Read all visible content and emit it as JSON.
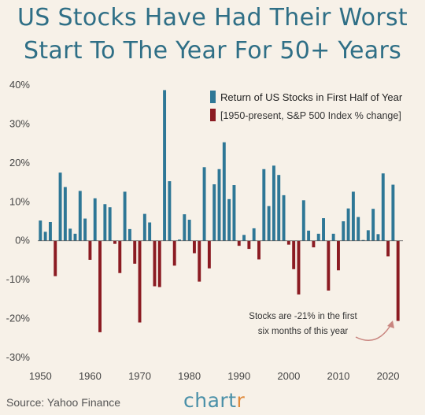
{
  "header": {
    "title_line1": "US Stocks Have Had Their Worst",
    "title_line2": "Start To The Year For 50+ Years"
  },
  "footer": {
    "source": "Source: Yahoo Finance",
    "brand_main": "chart",
    "brand_accent": "r"
  },
  "colors": {
    "positive": "#2e7796",
    "negative": "#8b1b22",
    "title": "#2f6f86",
    "background": "#f7f1e8",
    "brand": "#4a90a8",
    "brand_accent": "#e08a3c",
    "arrow": "#c9857f"
  },
  "chart_data": {
    "type": "bar",
    "title": "US Stocks Have Had Their Worst Start To The Year For 50+ Years",
    "xlabel": "",
    "ylabel": "",
    "x": [
      1950,
      1951,
      1952,
      1953,
      1954,
      1955,
      1956,
      1957,
      1958,
      1959,
      1960,
      1961,
      1962,
      1963,
      1964,
      1965,
      1966,
      1967,
      1968,
      1969,
      1970,
      1971,
      1972,
      1973,
      1974,
      1975,
      1976,
      1977,
      1978,
      1979,
      1980,
      1981,
      1982,
      1983,
      1984,
      1985,
      1986,
      1987,
      1988,
      1989,
      1990,
      1991,
      1992,
      1993,
      1994,
      1995,
      1996,
      1997,
      1998,
      1999,
      2000,
      2001,
      2002,
      2003,
      2004,
      2005,
      2006,
      2007,
      2008,
      2009,
      2010,
      2011,
      2012,
      2013,
      2014,
      2015,
      2016,
      2017,
      2018,
      2019,
      2020,
      2021,
      2022
    ],
    "values": [
      5.2,
      2.3,
      4.8,
      -9.1,
      17.5,
      13.8,
      3.1,
      1.8,
      12.8,
      5.7,
      -4.9,
      10.9,
      -23.5,
      9.4,
      8.6,
      -0.8,
      -8.3,
      12.6,
      3.0,
      -5.9,
      -21.0,
      6.9,
      4.7,
      -11.7,
      -11.9,
      38.7,
      15.3,
      -6.4,
      0.3,
      6.8,
      5.4,
      -3.2,
      -10.5,
      18.9,
      -7.1,
      14.5,
      18.4,
      25.3,
      10.7,
      14.3,
      -1.3,
      1.5,
      -2.1,
      3.2,
      -4.8,
      18.4,
      8.9,
      19.3,
      16.9,
      11.7,
      -1.0,
      -7.3,
      -13.8,
      10.4,
      2.6,
      -1.7,
      1.8,
      5.8,
      -12.8,
      1.8,
      -7.6,
      5.0,
      8.3,
      12.6,
      6.1,
      0.2,
      2.7,
      8.2,
      1.7,
      17.3,
      -4.0,
      14.4,
      -20.6
    ],
    "ylim": [
      -30,
      40
    ],
    "xlim": [
      1949,
      2023
    ],
    "yticks": [
      "40%",
      "30%",
      "20%",
      "10%",
      "0%",
      "-10%",
      "-20%",
      "-30%"
    ],
    "xticks": [
      "1950",
      "1960",
      "1970",
      "1980",
      "1990",
      "2000",
      "2010",
      "2020"
    ],
    "grid": false,
    "legend_position": "top-right",
    "legend": {
      "entry": "Return of US Stocks in First Half of Year",
      "subtitle": "[1950-present, S&P 500 Index % change]"
    },
    "annotation": {
      "line1": "Stocks are -21% in the first",
      "line2": "six months of this year"
    }
  }
}
